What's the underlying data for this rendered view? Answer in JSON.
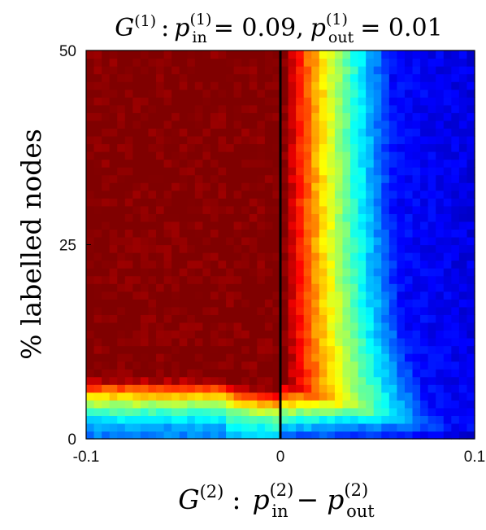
{
  "chart_data": {
    "type": "heatmap",
    "title": {
      "G": "G",
      "G_sup": "(1)",
      "sep": ":",
      "p_in": "p",
      "p_in_sup": "(1)",
      "p_in_sub": "in",
      "eq1": "= 0.09,",
      "p_out": "p",
      "p_out_sup": "(1)",
      "p_out_sub": "out",
      "eq2": "= 0.01"
    },
    "ylabel": "% labelled nodes",
    "xlabel": {
      "G": "G",
      "G_sup": "(2)",
      "sep": ":",
      "p_in": "p",
      "p_in_sup": "(2)",
      "p_in_sub": "in",
      "minus": "−",
      "p_out": "p",
      "p_out_sup": "(2)",
      "p_out_sub": "out"
    },
    "xlim": [
      -0.1,
      0.1
    ],
    "ylim": [
      0,
      50
    ],
    "x_ticks": [
      {
        "value": -0.1,
        "label": "-0.1"
      },
      {
        "value": 0,
        "label": "0"
      },
      {
        "value": 0.1,
        "label": "0.1"
      }
    ],
    "y_ticks": [
      {
        "value": 0,
        "label": "0"
      },
      {
        "value": 25,
        "label": "25"
      },
      {
        "value": 50,
        "label": "50"
      }
    ],
    "colormap": "jet",
    "value_range": [
      0,
      1
    ],
    "grid_size": {
      "nx": 50,
      "ny": 50
    },
    "reference_line": {
      "x": 0,
      "color": "#000000"
    },
    "description_of_values": "saturated (dark red, ~1) for x <= 0 above ~6% labelled; transition from red through yellow/cyan to dark blue as x increases above 0; low-label rows (<5%) show reduced values across full x range"
  }
}
